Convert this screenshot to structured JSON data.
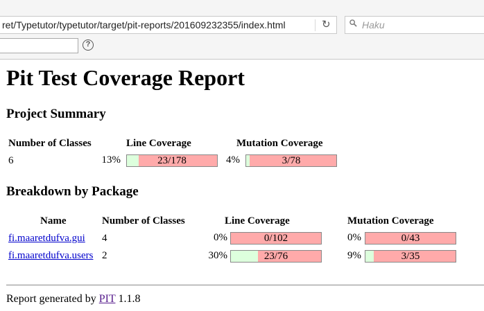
{
  "browser": {
    "url": "ret/Typetutor/typetutor/target/pit-reports/201609232355/index.html",
    "search_placeholder": "Haku",
    "find_value": ""
  },
  "report": {
    "title": "Pit Test Coverage Report",
    "project_summary": {
      "heading": "Project Summary",
      "headers": {
        "classes": "Number of Classes",
        "line": "Line Coverage",
        "mutation": "Mutation Coverage"
      },
      "classes": "6",
      "line_pct": "13%",
      "line_ratio": "23/178",
      "line_fill": 0.13,
      "mutation_pct": "4%",
      "mutation_ratio": "3/78",
      "mutation_fill": 0.04
    },
    "breakdown": {
      "heading": "Breakdown by Package",
      "headers": {
        "name": "Name",
        "classes": "Number of Classes",
        "line": "Line Coverage",
        "mutation": "Mutation Coverage"
      },
      "rows": [
        {
          "name": "fi.maaretdufva.gui",
          "classes": "4",
          "line_pct": "0%",
          "line_ratio": "0/102",
          "line_fill": 0.0,
          "mutation_pct": "0%",
          "mutation_ratio": "0/43",
          "mutation_fill": 0.0
        },
        {
          "name": "fi.maaretdufva.users",
          "classes": "2",
          "line_pct": "30%",
          "line_ratio": "23/76",
          "line_fill": 0.3,
          "mutation_pct": "9%",
          "mutation_ratio": "3/35",
          "mutation_fill": 0.09
        }
      ]
    },
    "footer": {
      "prefix": "Report generated by",
      "link": "PIT",
      "version": "1.1.8"
    }
  }
}
